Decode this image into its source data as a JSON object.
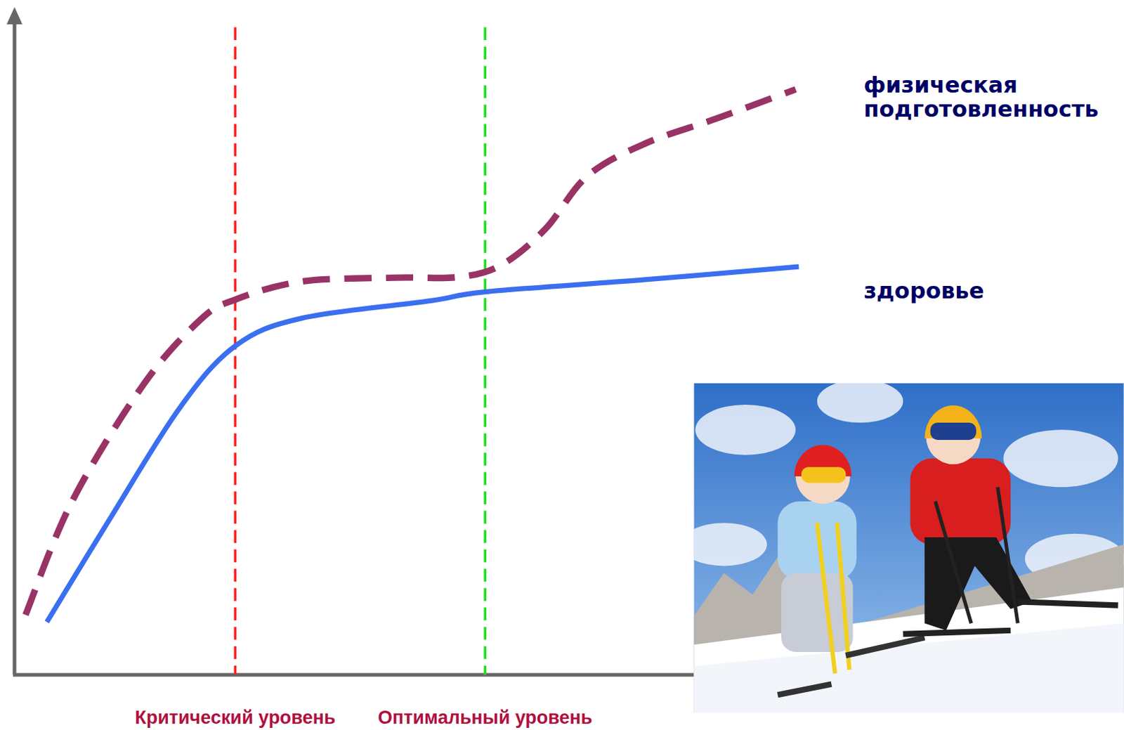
{
  "chart_data": {
    "type": "line",
    "tick_labels": false,
    "grid": false,
    "xlim": [
      0,
      100
    ],
    "ylim": [
      0,
      100
    ],
    "xticks": [],
    "yticks": [],
    "series": [
      {
        "name": "физическая подготовленность",
        "color": "#993366",
        "line_style": "dashed",
        "x": [
          1.4,
          7.3,
          16.4,
          23.6,
          28,
          36.4,
          48.2,
          56.4,
          61.8,
          67.3,
          72.7,
          80,
          89.1,
          99.1
        ],
        "values": [
          9.3,
          26.9,
          45.1,
          55.1,
          58.2,
          61,
          61.6,
          61.7,
          63.6,
          69.1,
          77.4,
          82.4,
          86.3,
          90.8
        ]
      },
      {
        "name": "здоровье",
        "color": "#3a6ff0",
        "line_style": "solid",
        "x": [
          4.1,
          11.8,
          20.9,
          28,
          36.4,
          52.7,
          59.7,
          80,
          99.5
        ],
        "values": [
          8.2,
          23.6,
          41.3,
          51,
          55.3,
          58,
          59.4,
          61.3,
          63.3
        ]
      }
    ],
    "vlines": [
      {
        "x": 28,
        "label": "Критический уровень",
        "color": "#ff2020"
      },
      {
        "x": 59.7,
        "label": "Оптимальный уровень",
        "color": "#22e022"
      }
    ]
  }
}
